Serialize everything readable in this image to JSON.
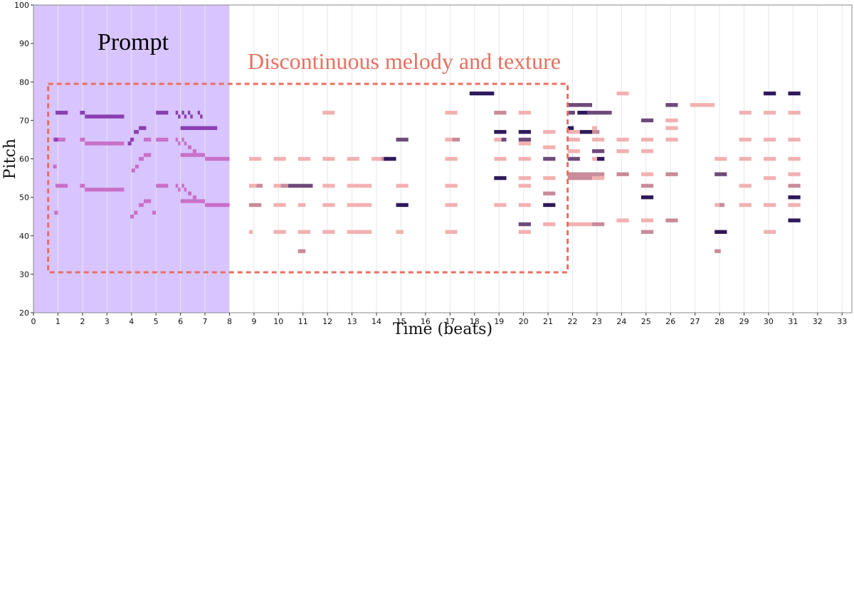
{
  "chart_data": {
    "type": "pianoroll",
    "xlabel": "Time (beats)",
    "ylabel": "Pitch",
    "xlim": [
      0,
      33.4
    ],
    "ylim": [
      20,
      100
    ],
    "xticks": [
      0,
      1,
      2,
      3,
      4,
      5,
      6,
      7,
      8,
      9,
      10,
      11,
      12,
      13,
      14,
      15,
      16,
      17,
      18,
      19,
      20,
      21,
      22,
      23,
      24,
      25,
      26,
      27,
      28,
      29,
      30,
      31,
      32,
      33
    ],
    "yticks": [
      20,
      30,
      40,
      50,
      60,
      70,
      80,
      90,
      100
    ],
    "grid": "vertical, light",
    "prompt_region": {
      "label": "Prompt",
      "x_range": [
        0,
        8
      ],
      "color": "#d8c4ff"
    },
    "annotation": {
      "label": "Discontinuous melody and texture",
      "x_range": [
        0.6,
        21.8
      ],
      "y_range": [
        30.5,
        79.5
      ],
      "color": "#e87060"
    },
    "palette": {
      "prompt_dark": "#8a3fb0",
      "prompt_light": "#c970c8",
      "light": "#f2b1b1",
      "medium": "#c98a9a",
      "dark_medium": "#6e4a7a",
      "dark": "#2e1a5a"
    },
    "notes_format": "[start_beat, duration_beats, pitch, color_key]",
    "notes": [
      [
        0.9,
        0.5,
        72,
        "prompt_dark"
      ],
      [
        0.8,
        0.5,
        65,
        "prompt_light"
      ],
      [
        0.9,
        0.5,
        53,
        "prompt_light"
      ],
      [
        0.8,
        0.15,
        58,
        "prompt_light"
      ],
      [
        0.85,
        0.15,
        46,
        "prompt_light"
      ],
      [
        0.85,
        0.15,
        65,
        "prompt_dark"
      ],
      [
        2.1,
        1.6,
        71,
        "prompt_dark"
      ],
      [
        1.9,
        0.2,
        72,
        "prompt_dark"
      ],
      [
        2.1,
        1.6,
        64,
        "prompt_light"
      ],
      [
        1.9,
        0.2,
        65,
        "prompt_light"
      ],
      [
        2.1,
        1.6,
        52,
        "prompt_light"
      ],
      [
        1.9,
        0.2,
        53,
        "prompt_light"
      ],
      [
        4.3,
        0.3,
        68,
        "prompt_dark"
      ],
      [
        4.1,
        0.2,
        67,
        "prompt_dark"
      ],
      [
        3.95,
        0.15,
        65,
        "prompt_dark"
      ],
      [
        3.85,
        0.15,
        64,
        "prompt_dark"
      ],
      [
        4.5,
        0.3,
        65,
        "prompt_light"
      ],
      [
        4.5,
        0.3,
        61,
        "prompt_light"
      ],
      [
        4.3,
        0.2,
        60,
        "prompt_light"
      ],
      [
        4.15,
        0.15,
        58,
        "prompt_light"
      ],
      [
        4.0,
        0.15,
        57,
        "prompt_light"
      ],
      [
        4.5,
        0.3,
        49,
        "prompt_light"
      ],
      [
        4.3,
        0.2,
        48,
        "prompt_light"
      ],
      [
        4.1,
        0.15,
        46,
        "prompt_light"
      ],
      [
        3.95,
        0.15,
        45,
        "prompt_light"
      ],
      [
        4.85,
        0.15,
        46,
        "prompt_light"
      ],
      [
        5.0,
        0.5,
        72,
        "prompt_dark"
      ],
      [
        5.0,
        0.5,
        65,
        "prompt_light"
      ],
      [
        5.0,
        0.5,
        53,
        "prompt_light"
      ],
      [
        5.8,
        0.1,
        72,
        "prompt_dark"
      ],
      [
        5.9,
        0.1,
        71,
        "prompt_dark"
      ],
      [
        6.05,
        0.1,
        72,
        "prompt_dark"
      ],
      [
        6.15,
        0.1,
        71,
        "prompt_dark"
      ],
      [
        6.3,
        0.1,
        72,
        "prompt_dark"
      ],
      [
        6.4,
        0.1,
        71,
        "prompt_dark"
      ],
      [
        6.7,
        0.1,
        72,
        "prompt_dark"
      ],
      [
        6.8,
        0.1,
        71,
        "prompt_dark"
      ],
      [
        6.0,
        1.5,
        68,
        "prompt_dark"
      ],
      [
        5.8,
        0.1,
        65,
        "prompt_light"
      ],
      [
        5.9,
        0.1,
        64,
        "prompt_light"
      ],
      [
        6.05,
        0.1,
        65,
        "prompt_light"
      ],
      [
        6.15,
        0.1,
        64,
        "prompt_light"
      ],
      [
        6.3,
        0.15,
        63,
        "prompt_light"
      ],
      [
        6.5,
        0.15,
        62,
        "prompt_light"
      ],
      [
        6.0,
        1.0,
        61,
        "prompt_light"
      ],
      [
        7.0,
        1.0,
        60,
        "prompt_light"
      ],
      [
        5.8,
        0.1,
        53,
        "prompt_light"
      ],
      [
        5.9,
        0.1,
        52,
        "prompt_light"
      ],
      [
        6.05,
        0.1,
        53,
        "prompt_light"
      ],
      [
        6.15,
        0.1,
        52,
        "prompt_light"
      ],
      [
        6.3,
        0.15,
        51,
        "prompt_light"
      ],
      [
        6.5,
        0.15,
        50,
        "prompt_light"
      ],
      [
        6.0,
        1.0,
        49,
        "prompt_light"
      ],
      [
        7.0,
        1.0,
        48,
        "prompt_light"
      ],
      [
        8.8,
        0.5,
        60,
        "light"
      ],
      [
        8.8,
        0.3,
        53,
        "light"
      ],
      [
        9.1,
        0.25,
        53,
        "medium"
      ],
      [
        8.8,
        0.5,
        48,
        "medium"
      ],
      [
        8.8,
        0.15,
        41,
        "light"
      ],
      [
        9.8,
        0.5,
        60,
        "light"
      ],
      [
        9.8,
        0.5,
        53,
        "light"
      ],
      [
        10.1,
        0.4,
        53,
        "medium"
      ],
      [
        10.4,
        1.0,
        53,
        "dark_medium"
      ],
      [
        9.8,
        0.5,
        48,
        "light"
      ],
      [
        9.8,
        0.5,
        41,
        "light"
      ],
      [
        10.8,
        0.5,
        60,
        "light"
      ],
      [
        10.8,
        0.3,
        48,
        "light"
      ],
      [
        10.8,
        0.5,
        41,
        "light"
      ],
      [
        10.8,
        0.3,
        36,
        "medium"
      ],
      [
        11.8,
        0.5,
        72,
        "light"
      ],
      [
        11.8,
        0.5,
        60,
        "light"
      ],
      [
        11.8,
        0.5,
        53,
        "light"
      ],
      [
        11.8,
        0.5,
        48,
        "light"
      ],
      [
        11.8,
        0.5,
        41,
        "light"
      ],
      [
        12.8,
        0.5,
        60,
        "light"
      ],
      [
        12.8,
        1.0,
        53,
        "light"
      ],
      [
        12.8,
        1.0,
        48,
        "light"
      ],
      [
        12.8,
        1.0,
        41,
        "light"
      ],
      [
        13.8,
        0.5,
        60,
        "light"
      ],
      [
        14.2,
        0.3,
        60,
        "medium"
      ],
      [
        14.3,
        0.5,
        60,
        "dark"
      ],
      [
        14.8,
        0.5,
        65,
        "dark_medium"
      ],
      [
        14.8,
        0.5,
        53,
        "light"
      ],
      [
        14.8,
        0.5,
        48,
        "dark"
      ],
      [
        14.8,
        0.3,
        41,
        "light"
      ],
      [
        16.8,
        0.5,
        72,
        "light"
      ],
      [
        16.8,
        0.4,
        65,
        "light"
      ],
      [
        17.1,
        0.3,
        65,
        "medium"
      ],
      [
        16.8,
        0.5,
        60,
        "light"
      ],
      [
        16.8,
        0.5,
        53,
        "light"
      ],
      [
        16.8,
        0.5,
        48,
        "light"
      ],
      [
        16.8,
        0.5,
        41,
        "light"
      ],
      [
        17.8,
        1.0,
        77,
        "dark"
      ],
      [
        18.8,
        0.5,
        72,
        "medium"
      ],
      [
        18.8,
        0.5,
        67,
        "dark"
      ],
      [
        18.8,
        0.3,
        65,
        "light"
      ],
      [
        19.1,
        0.2,
        65,
        "dark_medium"
      ],
      [
        18.8,
        0.5,
        60,
        "light"
      ],
      [
        18.8,
        0.5,
        55,
        "dark"
      ],
      [
        18.8,
        0.5,
        48,
        "light"
      ],
      [
        19.8,
        0.5,
        72,
        "light"
      ],
      [
        19.8,
        0.5,
        67,
        "dark"
      ],
      [
        19.8,
        0.5,
        65,
        "dark_medium"
      ],
      [
        19.8,
        0.5,
        64,
        "light"
      ],
      [
        19.8,
        0.5,
        60,
        "light"
      ],
      [
        19.8,
        0.5,
        55,
        "light"
      ],
      [
        19.8,
        0.5,
        53,
        "light"
      ],
      [
        19.8,
        0.5,
        48,
        "light"
      ],
      [
        19.8,
        0.5,
        43,
        "dark_medium"
      ],
      [
        19.8,
        0.5,
        41,
        "light"
      ],
      [
        20.8,
        0.5,
        67,
        "light"
      ],
      [
        20.8,
        0.5,
        63,
        "light"
      ],
      [
        20.8,
        0.5,
        60,
        "dark_medium"
      ],
      [
        20.8,
        0.5,
        55,
        "light"
      ],
      [
        20.8,
        0.5,
        51,
        "medium"
      ],
      [
        20.8,
        0.5,
        48,
        "dark"
      ],
      [
        20.8,
        0.5,
        43,
        "light"
      ],
      [
        21.8,
        1.0,
        74,
        "dark_medium"
      ],
      [
        21.8,
        0.3,
        72,
        "dark_medium"
      ],
      [
        22.2,
        0.5,
        72,
        "dark"
      ],
      [
        22.6,
        1.0,
        72,
        "dark_medium"
      ],
      [
        21.8,
        0.25,
        68,
        "dark"
      ],
      [
        21.8,
        0.5,
        67,
        "light"
      ],
      [
        22.3,
        0.5,
        67,
        "dark"
      ],
      [
        22.8,
        0.3,
        67,
        "medium"
      ],
      [
        22.8,
        0.2,
        68,
        "light"
      ],
      [
        21.8,
        0.5,
        65,
        "light"
      ],
      [
        22.8,
        0.5,
        65,
        "light"
      ],
      [
        21.8,
        0.5,
        62,
        "light"
      ],
      [
        22.8,
        0.5,
        62,
        "dark_medium"
      ],
      [
        21.8,
        0.5,
        60,
        "dark_medium"
      ],
      [
        22.8,
        0.5,
        60,
        "light"
      ],
      [
        23.0,
        0.3,
        60,
        "dark"
      ],
      [
        21.8,
        1.5,
        56,
        "medium"
      ],
      [
        21.8,
        1.0,
        55,
        "medium"
      ],
      [
        22.8,
        0.5,
        55,
        "light"
      ],
      [
        21.8,
        1.0,
        43,
        "light"
      ],
      [
        22.8,
        0.5,
        43,
        "medium"
      ],
      [
        23.8,
        0.5,
        77,
        "light"
      ],
      [
        23.8,
        0.5,
        65,
        "light"
      ],
      [
        23.8,
        0.5,
        62,
        "light"
      ],
      [
        23.8,
        0.5,
        56,
        "medium"
      ],
      [
        23.8,
        0.5,
        44,
        "light"
      ],
      [
        24.8,
        0.5,
        70,
        "dark_medium"
      ],
      [
        24.8,
        0.5,
        65,
        "light"
      ],
      [
        24.8,
        0.5,
        62,
        "light"
      ],
      [
        24.8,
        0.5,
        56,
        "light"
      ],
      [
        24.8,
        0.5,
        53,
        "medium"
      ],
      [
        24.8,
        0.5,
        50,
        "dark"
      ],
      [
        24.8,
        0.5,
        44,
        "light"
      ],
      [
        24.8,
        0.5,
        41,
        "medium"
      ],
      [
        25.8,
        0.5,
        74,
        "dark_medium"
      ],
      [
        25.8,
        0.5,
        70,
        "light"
      ],
      [
        25.8,
        0.5,
        68,
        "light"
      ],
      [
        25.8,
        0.5,
        65,
        "light"
      ],
      [
        25.8,
        0.5,
        56,
        "medium"
      ],
      [
        25.8,
        0.5,
        44,
        "medium"
      ],
      [
        26.8,
        1.0,
        74,
        "light"
      ],
      [
        27.8,
        0.5,
        60,
        "light"
      ],
      [
        27.8,
        0.5,
        56,
        "dark_medium"
      ],
      [
        27.8,
        0.3,
        48,
        "light"
      ],
      [
        28.0,
        0.2,
        48,
        "medium"
      ],
      [
        27.8,
        0.5,
        41,
        "dark"
      ],
      [
        27.8,
        0.25,
        36,
        "medium"
      ],
      [
        28.8,
        0.5,
        72,
        "light"
      ],
      [
        28.8,
        0.5,
        65,
        "light"
      ],
      [
        28.8,
        0.5,
        60,
        "light"
      ],
      [
        28.8,
        0.5,
        53,
        "light"
      ],
      [
        28.8,
        0.5,
        48,
        "light"
      ],
      [
        29.8,
        0.5,
        77,
        "dark"
      ],
      [
        29.8,
        0.5,
        72,
        "light"
      ],
      [
        29.8,
        0.5,
        65,
        "light"
      ],
      [
        29.8,
        0.5,
        60,
        "light"
      ],
      [
        29.8,
        0.5,
        55,
        "light"
      ],
      [
        29.8,
        0.5,
        48,
        "light"
      ],
      [
        29.8,
        0.5,
        41,
        "light"
      ],
      [
        30.8,
        0.5,
        77,
        "dark"
      ],
      [
        30.8,
        0.5,
        72,
        "light"
      ],
      [
        30.8,
        0.5,
        65,
        "light"
      ],
      [
        30.8,
        0.5,
        60,
        "light"
      ],
      [
        30.8,
        0.5,
        56,
        "light"
      ],
      [
        30.8,
        0.5,
        53,
        "medium"
      ],
      [
        30.8,
        0.5,
        50,
        "dark"
      ],
      [
        30.8,
        0.5,
        48,
        "light"
      ],
      [
        30.8,
        0.5,
        44,
        "dark"
      ]
    ]
  }
}
